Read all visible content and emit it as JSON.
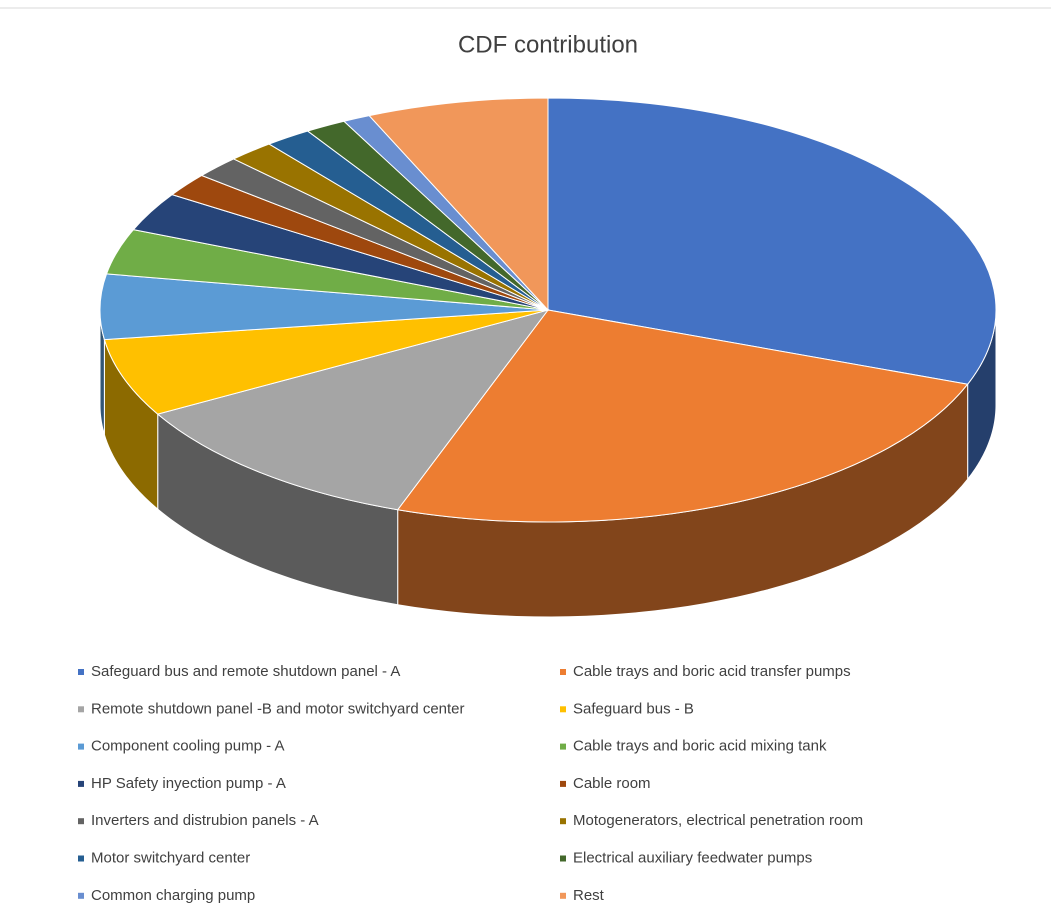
{
  "chart_data": {
    "type": "pie3d",
    "title": "CDF contribution",
    "categories": [
      "Safeguard bus and remote shutdown panel - A",
      "Cable trays and boric acid transfer pumps",
      "Remote shutdown panel -B and motor switchyard center",
      "Safeguard bus - B",
      "Component cooling pump - A",
      "Cable trays and boric acid mixing tank",
      "HP Safety inyection pump - A",
      "Cable room",
      "Inverters and distrubion panels - A",
      "Motogenerators, electrical penetration room",
      "Motor switchyard center",
      "Electrical auxiliary feedwater pumps",
      "Common charging pump",
      "Rest"
    ],
    "values": [
      31,
      25,
      11.5,
      6,
      5,
      3.5,
      3,
      1.8,
      1.7,
      1.7,
      1.7,
      1.5,
      1,
      6.6
    ],
    "colors": [
      "#4472c4",
      "#ed7d31",
      "#a5a5a5",
      "#ffc000",
      "#5b9bd5",
      "#70ad47",
      "#264478",
      "#9e480e",
      "#636363",
      "#997300",
      "#255e91",
      "#43682b",
      "#698ed0",
      "#f1975a"
    ],
    "legend": "bottom"
  }
}
